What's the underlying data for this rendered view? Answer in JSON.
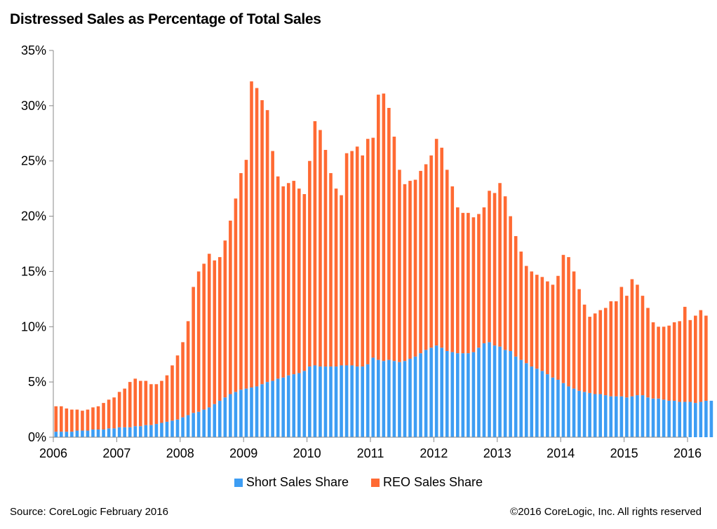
{
  "chart_data": {
    "type": "bar",
    "stacked": true,
    "title": "Distressed Sales as Percentage of Total Sales",
    "x_start": "2006-01",
    "x_frequency": "monthly",
    "x_ticks": [
      "2006",
      "2007",
      "2008",
      "2009",
      "2010",
      "2011",
      "2012",
      "2013",
      "2014",
      "2015",
      "2016"
    ],
    "y_ticks": [
      "0%",
      "5%",
      "10%",
      "15%",
      "20%",
      "25%",
      "30%",
      "35%"
    ],
    "ylim": [
      0,
      35
    ],
    "grid": false,
    "legend_position": "bottom",
    "colors": {
      "short": "#3d9df3",
      "reo": "#ff6a33"
    },
    "series": [
      {
        "name": "Short Sales Share",
        "values": [
          0.5,
          0.5,
          0.5,
          0.5,
          0.6,
          0.6,
          0.6,
          0.7,
          0.7,
          0.7,
          0.8,
          0.8,
          0.9,
          0.9,
          0.9,
          1.0,
          1.0,
          1.1,
          1.1,
          1.2,
          1.3,
          1.4,
          1.5,
          1.6,
          1.8,
          2.0,
          2.2,
          2.3,
          2.5,
          2.7,
          3.0,
          3.3,
          3.6,
          3.9,
          4.1,
          4.3,
          4.4,
          4.5,
          4.6,
          4.8,
          5.0,
          5.1,
          5.3,
          5.4,
          5.6,
          5.7,
          5.8,
          6.0,
          6.4,
          6.5,
          6.4,
          6.4,
          6.4,
          6.4,
          6.5,
          6.5,
          6.5,
          6.4,
          6.4,
          6.6,
          7.2,
          7.0,
          6.9,
          7.0,
          6.9,
          6.8,
          6.9,
          7.1,
          7.3,
          7.6,
          7.9,
          8.1,
          8.3,
          8.1,
          7.8,
          7.7,
          7.6,
          7.6,
          7.6,
          7.7,
          8.1,
          8.5,
          8.6,
          8.3,
          8.2,
          7.9,
          7.8,
          7.3,
          7.0,
          6.7,
          6.4,
          6.2,
          6.0,
          5.7,
          5.4,
          5.2,
          4.9,
          4.6,
          4.4,
          4.2,
          4.1,
          4.0,
          3.9,
          3.9,
          3.8,
          3.7,
          3.7,
          3.7,
          3.6,
          3.7,
          3.8,
          3.8,
          3.6,
          3.5,
          3.5,
          3.4,
          3.3,
          3.3,
          3.2,
          3.2,
          3.2,
          3.1,
          3.2,
          3.3,
          3.3
        ]
      },
      {
        "name": "REO Sales Share",
        "values": [
          2.3,
          2.3,
          2.1,
          2.0,
          1.9,
          1.8,
          1.9,
          2.0,
          2.1,
          2.4,
          2.6,
          2.8,
          3.2,
          3.5,
          4.1,
          4.3,
          4.1,
          4.0,
          3.7,
          3.6,
          3.8,
          4.2,
          5.0,
          5.8,
          6.8,
          8.5,
          11.4,
          12.7,
          13.2,
          13.9,
          13.0,
          13.0,
          14.2,
          15.7,
          17.5,
          19.6,
          20.7,
          27.7,
          27.0,
          25.7,
          24.6,
          20.8,
          18.3,
          17.3,
          17.4,
          17.5,
          16.7,
          16.0,
          18.6,
          22.1,
          21.4,
          19.6,
          17.5,
          16.1,
          15.4,
          19.2,
          19.4,
          19.9,
          19.1,
          20.4,
          19.9,
          24.0,
          24.2,
          22.8,
          20.3,
          17.4,
          16.0,
          16.1,
          16.0,
          16.5,
          16.8,
          17.4,
          18.7,
          18.1,
          16.4,
          15.0,
          13.2,
          12.7,
          12.7,
          12.2,
          12.1,
          12.3,
          13.7,
          13.8,
          14.8,
          13.9,
          12.2,
          10.9,
          9.8,
          8.8,
          8.6,
          8.5,
          8.5,
          8.4,
          8.4,
          9.4,
          11.6,
          11.7,
          10.6,
          9.2,
          7.9,
          6.9,
          7.3,
          7.6,
          7.9,
          8.6,
          8.6,
          9.9,
          9.2,
          10.6,
          10.0,
          9.0,
          8.1,
          6.9,
          6.5,
          6.6,
          6.8,
          7.1,
          7.3,
          8.6,
          7.4,
          7.9,
          8.3,
          7.7
        ]
      }
    ]
  },
  "legend": {
    "short_label": "Short Sales Share",
    "reo_label": "REO Sales Share"
  },
  "footer": {
    "source": "Source: CoreLogic February 2016",
    "copyright": "©2016 CoreLogic, Inc. All rights reserved"
  }
}
